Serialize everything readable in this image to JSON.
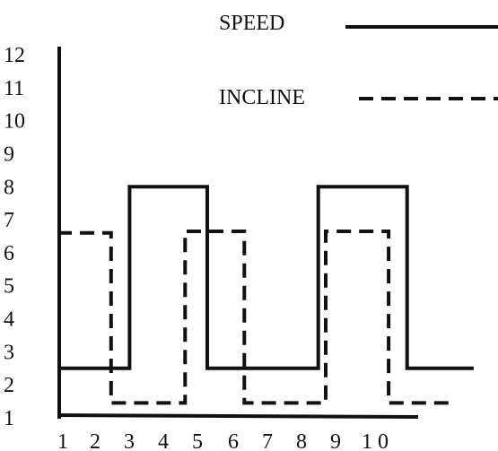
{
  "chart_data": {
    "type": "line",
    "title": "",
    "xlabel": "",
    "ylabel": "",
    "x_ticks": [
      "1",
      "2",
      "3",
      "4",
      "5",
      "6",
      "7",
      "8",
      "9",
      "1 0"
    ],
    "y_ticks": [
      "1",
      "2",
      "3",
      "4",
      "5",
      "6",
      "7",
      "8",
      "9",
      "10",
      "11",
      "12"
    ],
    "xlim": [
      1,
      12.3
    ],
    "ylim": [
      1,
      12.3
    ],
    "grid": false,
    "legend_position": "top-right",
    "series": [
      {
        "name": "SPEED",
        "style": "solid",
        "color": "#111111",
        "points": [
          [
            1,
            2.5
          ],
          [
            2.95,
            2.5
          ],
          [
            2.95,
            8
          ],
          [
            5.05,
            8
          ],
          [
            5.05,
            2.5
          ],
          [
            8.05,
            2.5
          ],
          [
            8.05,
            8
          ],
          [
            10.45,
            8
          ],
          [
            10.45,
            2.5
          ],
          [
            12.25,
            2.5
          ]
        ]
      },
      {
        "name": "INCLINE",
        "style": "dashed",
        "color": "#111111",
        "points": [
          [
            1,
            6.6
          ],
          [
            2.45,
            6.6
          ],
          [
            2.45,
            1.45
          ],
          [
            4.45,
            1.45
          ],
          [
            4.45,
            6.65
          ],
          [
            6.05,
            6.65
          ],
          [
            6.05,
            1.45
          ],
          [
            8.25,
            1.45
          ],
          [
            8.25,
            6.65
          ],
          [
            9.95,
            6.65
          ],
          [
            9.95,
            1.45
          ],
          [
            11.6,
            1.45
          ]
        ]
      }
    ]
  }
}
